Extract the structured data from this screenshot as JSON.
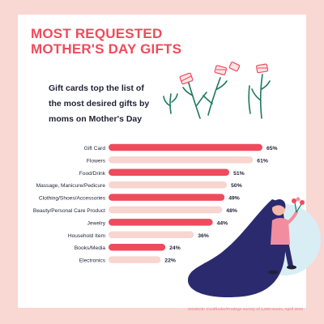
{
  "title": "MOST REQUESTED\nMOTHER'S DAY GIFTS",
  "subtitle": "Gift cards top the list of\nthe most desired gifts by\nmoms on Mother's Day",
  "source": "SOURCE: Cardfinder/Prodege survey of 1,000 moms, April 2024",
  "colors": {
    "background": "#f9d7d2",
    "bar_primary": "#ef4b5c",
    "bar_secondary": "#f8d5cf",
    "text_dark": "#1f2235",
    "navy": "#2c2a6e",
    "circle": "#d9eef4"
  },
  "icons": [
    "flower-sprigs-illustration",
    "woman-holding-flowers-illustration"
  ],
  "chart_data": {
    "type": "bar",
    "orientation": "horizontal",
    "categories": [
      "Gift Card",
      "Flowers",
      "Food/Drink",
      "Massage, Manicure/Pedicure",
      "Clothing/Shoes/Accessories",
      "Beauty/Personal Care Product",
      "Jewelry",
      "Household Item",
      "Books/Media",
      "Electronics"
    ],
    "values": [
      65,
      61,
      51,
      50,
      49,
      48,
      44,
      36,
      24,
      22
    ],
    "value_labels": [
      "65%",
      "61%",
      "51%",
      "50%",
      "49%",
      "48%",
      "44%",
      "36%",
      "24%",
      "22%"
    ],
    "highlighted": [
      true,
      false,
      true,
      false,
      true,
      false,
      true,
      false,
      true,
      false
    ],
    "xlim": [
      0,
      65
    ],
    "grid": false,
    "legend": "none"
  }
}
